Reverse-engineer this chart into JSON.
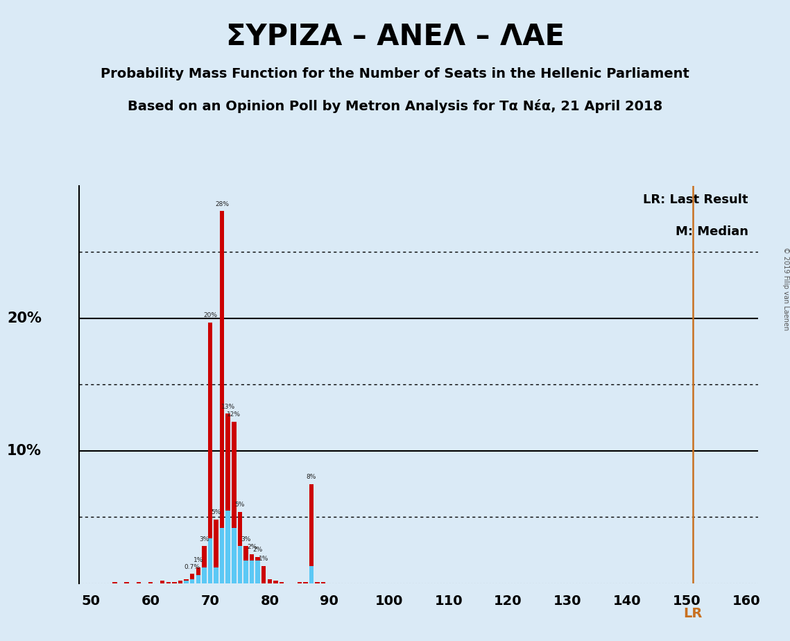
{
  "title": "ΣΥΡΙΖΑ – ΑΝΕΛ – ΛΑΕ",
  "subtitle1": "Probability Mass Function for the Number of Seats in the Hellenic Parliament",
  "subtitle2": "Based on an Opinion Poll by Metron Analysis for Τα Νέα, 21 April 2018",
  "copyright": "© 2019 Filip van Laenen",
  "background_color": "#daeaf6",
  "bar_color_red": "#cc0000",
  "bar_color_blue": "#5bc8f5",
  "lr_line_color": "#c87020",
  "lr_value": 151,
  "xlim": [
    48,
    162
  ],
  "ylim": [
    0,
    0.3
  ],
  "xticks": [
    50,
    60,
    70,
    80,
    90,
    100,
    110,
    120,
    130,
    140,
    150,
    160
  ],
  "grid_solid": [
    0.1,
    0.2
  ],
  "grid_dotted": [
    0.05,
    0.15,
    0.25
  ],
  "lr_label": "LR: Last Result",
  "m_label": "M: Median",
  "lr_bottom_label": "LR",
  "ylabel_10_pos": 0.1,
  "ylabel_20_pos": 0.2,
  "bars": [
    {
      "seat": 54,
      "red": 0.001,
      "blue": 0.0
    },
    {
      "seat": 56,
      "red": 0.001,
      "blue": 0.0
    },
    {
      "seat": 58,
      "red": 0.001,
      "blue": 0.0
    },
    {
      "seat": 60,
      "red": 0.001,
      "blue": 0.0
    },
    {
      "seat": 62,
      "red": 0.002,
      "blue": 0.0
    },
    {
      "seat": 63,
      "red": 0.001,
      "blue": 0.0
    },
    {
      "seat": 64,
      "red": 0.001,
      "blue": 0.0
    },
    {
      "seat": 65,
      "red": 0.002,
      "blue": 0.0
    },
    {
      "seat": 66,
      "red": 0.003,
      "blue": 0.002
    },
    {
      "seat": 67,
      "red": 0.007,
      "blue": 0.003
    },
    {
      "seat": 68,
      "red": 0.012,
      "blue": 0.006
    },
    {
      "seat": 69,
      "red": 0.028,
      "blue": 0.012
    },
    {
      "seat": 70,
      "red": 0.197,
      "blue": 0.034
    },
    {
      "seat": 71,
      "red": 0.048,
      "blue": 0.012
    },
    {
      "seat": 72,
      "red": 0.281,
      "blue": 0.042
    },
    {
      "seat": 73,
      "red": 0.128,
      "blue": 0.055
    },
    {
      "seat": 74,
      "red": 0.122,
      "blue": 0.042
    },
    {
      "seat": 75,
      "red": 0.054,
      "blue": 0.028
    },
    {
      "seat": 76,
      "red": 0.028,
      "blue": 0.017
    },
    {
      "seat": 77,
      "red": 0.022,
      "blue": 0.017
    },
    {
      "seat": 78,
      "red": 0.02,
      "blue": 0.017
    },
    {
      "seat": 79,
      "red": 0.013,
      "blue": 0.0
    },
    {
      "seat": 80,
      "red": 0.003,
      "blue": 0.0
    },
    {
      "seat": 81,
      "red": 0.002,
      "blue": 0.0
    },
    {
      "seat": 82,
      "red": 0.001,
      "blue": 0.0
    },
    {
      "seat": 85,
      "red": 0.001,
      "blue": 0.0
    },
    {
      "seat": 86,
      "red": 0.001,
      "blue": 0.0
    },
    {
      "seat": 87,
      "red": 0.075,
      "blue": 0.013
    },
    {
      "seat": 88,
      "red": 0.001,
      "blue": 0.0
    },
    {
      "seat": 89,
      "red": 0.001,
      "blue": 0.0
    }
  ]
}
